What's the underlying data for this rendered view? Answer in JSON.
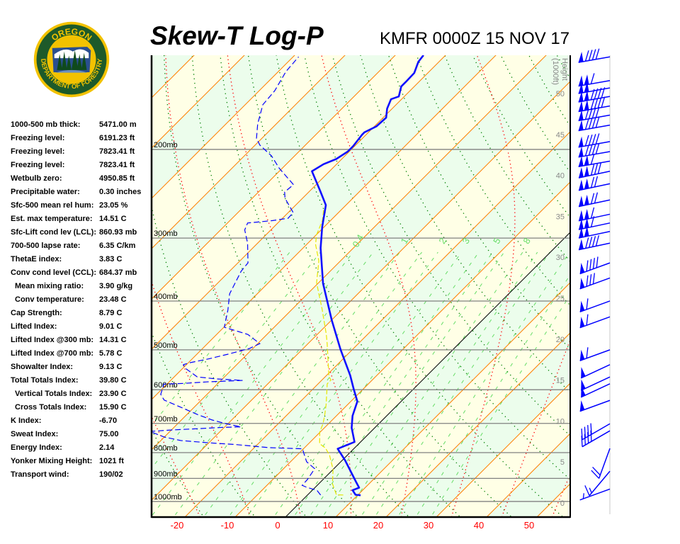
{
  "header": {
    "title": "Skew-T Log-P",
    "station_time": "KMFR 0000Z 15 NOV 17"
  },
  "logo": {
    "top_text": "OREGON",
    "bottom_text": "DEPARTMENT OF FORESTRY",
    "colors": {
      "ring": "#f2c200",
      "field": "#1d5a2a"
    }
  },
  "stats": [
    {
      "label": "1000-500 mb thick:",
      "value": "5471.00 m"
    },
    {
      "label": "Freezing level:",
      "value": "6191.23 ft"
    },
    {
      "label": "Freezing level:",
      "value": "7823.41 ft"
    },
    {
      "label": "Freezing level:",
      "value": "7823.41 ft"
    },
    {
      "label": "Wetbulb zero:",
      "value": "4950.85 ft"
    },
    {
      "label": "Precipitable water:",
      "value": "0.30 inches"
    },
    {
      "label": "Sfc-500 mean rel hum:",
      "value": "23.05 %"
    },
    {
      "label": "Est. max temperature:",
      "value": "14.51 C"
    },
    {
      "label": "Sfc-Lift cond lev (LCL):",
      "value": "860.93 mb"
    },
    {
      "label": "700-500 lapse rate:",
      "value": "6.35 C/km"
    },
    {
      "label": "ThetaE index:",
      "value": "3.83 C"
    },
    {
      "label": "Conv cond level (CCL):",
      "value": "684.37 mb"
    },
    {
      "label": "Mean mixing ratio:",
      "value": "3.90 g/kg"
    },
    {
      "label": "Conv temperature:",
      "value": "23.48 C"
    },
    {
      "label": "Cap Strength:",
      "value": "8.79 C"
    },
    {
      "label": "Lifted Index:",
      "value": "9.01 C"
    },
    {
      "label": "Lifted Index @300 mb:",
      "value": "14.31 C"
    },
    {
      "label": "Lifted Index @700 mb:",
      "value": "5.78 C"
    },
    {
      "label": "Showalter Index:",
      "value": "9.13 C"
    },
    {
      "label": "Total Totals Index:",
      "value": "39.80 C"
    },
    {
      "label": "Vertical Totals Index:",
      "value": "23.90 C"
    },
    {
      "label": "Cross Totals Index:",
      "value": "15.90 C"
    },
    {
      "label": "K Index:",
      "value": "-6.70"
    },
    {
      "label": "Sweat Index:",
      "value": "75.00"
    },
    {
      "label": "Energy Index:",
      "value": "2.14"
    },
    {
      "label": "Yonker Mixing Height:",
      "value": "1021 ft"
    },
    {
      "label": "Transport wind:",
      "value": "190/02"
    }
  ],
  "chart_data": {
    "type": "skew-t",
    "title": "Skew-T Log-P",
    "subtitle": "KMFR 0000Z 15 NOV 17",
    "x_axis": {
      "unit": "C",
      "ticks": [
        -20,
        -10,
        0,
        10,
        20,
        30,
        40,
        50
      ],
      "tick_labels": [
        "-20",
        "-10",
        "0",
        "10",
        "20",
        "30",
        "40",
        "50"
      ]
    },
    "y_axis": {
      "scale": "log-pressure",
      "range_mb": [
        1075,
        130
      ],
      "isobars": [
        200,
        300,
        400,
        500,
        600,
        700,
        800,
        900,
        1000
      ],
      "isobar_labels": [
        "200mb",
        "300mb",
        "400mb",
        "500mb",
        "600mb",
        "700mb",
        "800mb",
        "900mb",
        "1000mb"
      ]
    },
    "height_axis": {
      "label_line1": "Height",
      "label_line2": "(1000ft)",
      "ticks": [
        0,
        5,
        10,
        15,
        20,
        25,
        30,
        35,
        40,
        45,
        50
      ],
      "tick_labels": [
        "0",
        "5",
        "10",
        "15",
        "20",
        "25",
        "30",
        "35",
        "40",
        "45",
        "50"
      ]
    },
    "isotherm_interval_c": 10,
    "mixing_ratio_labels": [
      "0.4",
      "1",
      "2",
      "3",
      "5",
      "8"
    ],
    "mixing_ratio_label_values": [
      0.4,
      1,
      2,
      3,
      5,
      8
    ],
    "mixing_ratio_lines": [
      0.1,
      0.2,
      0.4,
      0.6,
      1,
      1.5,
      2,
      3,
      4,
      5,
      6,
      8,
      10,
      12,
      16,
      20,
      24
    ],
    "colors": {
      "temperature": "#1010ff",
      "dewpoint": "#0000ff",
      "wetbulb": "#e6e600",
      "isotherm": "#ff8000",
      "zero_isotherm": "#000000",
      "dry_adiabat": "#008000",
      "moist_adiabat": "#ff0000",
      "mixing_ratio": "#66dd66",
      "isobar": "#808080",
      "band_a": "#ffffe6",
      "band_b": "#ecfdec",
      "wind": "#0000ff",
      "x_tick_labels": "#ff0000"
    },
    "temperature": [
      {
        "p": 972,
        "t": 10.6
      },
      {
        "p": 970,
        "t": 9.5
      },
      {
        "p": 950,
        "t": 8.0
      },
      {
        "p": 939,
        "t": 8.8
      },
      {
        "p": 914,
        "t": 7.0
      },
      {
        "p": 829,
        "t": 0.6
      },
      {
        "p": 786,
        "t": -3.2
      },
      {
        "p": 762,
        "t": -1.2
      },
      {
        "p": 714,
        "t": -4.6
      },
      {
        "p": 676,
        "t": -6.8
      },
      {
        "p": 633,
        "t": -8.7
      },
      {
        "p": 597,
        "t": -12.0
      },
      {
        "p": 562,
        "t": -15.3
      },
      {
        "p": 499,
        "t": -22.4
      },
      {
        "p": 437,
        "t": -29.9
      },
      {
        "p": 369,
        "t": -39.0
      },
      {
        "p": 314,
        "t": -46.5
      },
      {
        "p": 285,
        "t": -50.4
      },
      {
        "p": 258,
        "t": -54.0
      },
      {
        "p": 242,
        "t": -57.9
      },
      {
        "p": 221,
        "t": -63.5
      },
      {
        "p": 214,
        "t": -62.6
      },
      {
        "p": 209,
        "t": -61.1
      },
      {
        "p": 202,
        "t": -60.3
      },
      {
        "p": 197,
        "t": -60.3
      },
      {
        "p": 187,
        "t": -60.8
      },
      {
        "p": 185,
        "t": -60.8
      },
      {
        "p": 180,
        "t": -59.6
      },
      {
        "p": 173,
        "t": -59.4
      },
      {
        "p": 166,
        "t": -61.0
      },
      {
        "p": 159,
        "t": -62.1
      },
      {
        "p": 157,
        "t": -61.1
      },
      {
        "p": 150,
        "t": -62.6
      },
      {
        "p": 147,
        "t": -62.6
      },
      {
        "p": 141,
        "t": -62.7
      },
      {
        "p": 134,
        "t": -64.1
      },
      {
        "p": 130,
        "t": -64.4
      }
    ],
    "dewpoint": [
      {
        "p": 971,
        "t": 2.6
      },
      {
        "p": 950,
        "t": 0.9
      },
      {
        "p": 938,
        "t": -1.6
      },
      {
        "p": 929,
        "t": -3.0
      },
      {
        "p": 905,
        "t": -3.1
      },
      {
        "p": 861,
        "t": -3.8
      },
      {
        "p": 834,
        "t": -6.8
      },
      {
        "p": 807,
        "t": -8.7
      },
      {
        "p": 786,
        "t": -10.2
      },
      {
        "p": 782,
        "t": -17.0
      },
      {
        "p": 771,
        "t": -24.3
      },
      {
        "p": 765,
        "t": -29.9
      },
      {
        "p": 757,
        "t": -36.0
      },
      {
        "p": 745,
        "t": -40.0
      },
      {
        "p": 726,
        "t": -44.0
      },
      {
        "p": 721,
        "t": -39.6
      },
      {
        "p": 717,
        "t": -35.0
      },
      {
        "p": 713,
        "t": -30.6
      },
      {
        "p": 711,
        "t": -26.8
      },
      {
        "p": 701,
        "t": -30.4
      },
      {
        "p": 689,
        "t": -33.9
      },
      {
        "p": 672,
        "t": -37.9
      },
      {
        "p": 644,
        "t": -44.0
      },
      {
        "p": 629,
        "t": -47.4
      },
      {
        "p": 613,
        "t": -49.2
      },
      {
        "p": 585,
        "t": -50.6
      },
      {
        "p": 583,
        "t": -46.9
      },
      {
        "p": 579,
        "t": -42.6
      },
      {
        "p": 575,
        "t": -35.7
      },
      {
        "p": 571,
        "t": -41.3
      },
      {
        "p": 566,
        "t": -45.4
      },
      {
        "p": 544,
        "t": -49.5
      },
      {
        "p": 535,
        "t": -50.6
      },
      {
        "p": 530,
        "t": -49.6
      },
      {
        "p": 521,
        "t": -46.7
      },
      {
        "p": 510,
        "t": -43.8
      },
      {
        "p": 497,
        "t": -40.7
      },
      {
        "p": 486,
        "t": -39.6
      },
      {
        "p": 466,
        "t": -43.8
      },
      {
        "p": 451,
        "t": -49.9
      },
      {
        "p": 417,
        "t": -52.6
      },
      {
        "p": 387,
        "t": -55.5
      },
      {
        "p": 349,
        "t": -57.7
      },
      {
        "p": 336,
        "t": -58.0
      },
      {
        "p": 307,
        "t": -62.0
      },
      {
        "p": 289,
        "t": -65.2
      },
      {
        "p": 280,
        "t": -66.0
      },
      {
        "p": 277,
        "t": -61.6
      },
      {
        "p": 274,
        "t": -58.9
      },
      {
        "p": 267,
        "t": -59.0
      },
      {
        "p": 250,
        "t": -63.5
      },
      {
        "p": 243,
        "t": -64.8
      },
      {
        "p": 235,
        "t": -64.5
      },
      {
        "p": 218,
        "t": -70.6
      },
      {
        "p": 206,
        "t": -74.6
      },
      {
        "p": 196,
        "t": -79.1
      },
      {
        "p": 190,
        "t": -81.1
      },
      {
        "p": 178,
        "t": -83.7
      },
      {
        "p": 163,
        "t": -86.5
      },
      {
        "p": 153,
        "t": -86.9
      },
      {
        "p": 140,
        "t": -88.5
      },
      {
        "p": 131,
        "t": -88.9
      }
    ],
    "wetbulb": [
      {
        "p": 971,
        "t": 7.1
      },
      {
        "p": 970,
        "t": 5.7
      },
      {
        "p": 922,
        "t": 2.7
      },
      {
        "p": 864,
        "t": 0.0
      },
      {
        "p": 810,
        "t": -3.5
      },
      {
        "p": 783,
        "t": -5.8
      },
      {
        "p": 768,
        "t": -7.8
      },
      {
        "p": 728,
        "t": -10.1
      },
      {
        "p": 701,
        "t": -11.1
      },
      {
        "p": 677,
        "t": -12.3
      },
      {
        "p": 642,
        "t": -14.3
      },
      {
        "p": 584,
        "t": -18.2
      },
      {
        "p": 574,
        "t": -18.2
      },
      {
        "p": 565,
        "t": -19.3
      },
      {
        "p": 486,
        "t": -26.2
      },
      {
        "p": 466,
        "t": -28.2
      },
      {
        "p": 414,
        "t": -34.2
      },
      {
        "p": 368,
        "t": -40.4
      },
      {
        "p": 333,
        "t": -44.3
      },
      {
        "p": 309,
        "t": -48.2
      },
      {
        "p": 296,
        "t": -49.9
      },
      {
        "p": 277,
        "t": -51.6
      },
      {
        "p": 263,
        "t": -53.6
      }
    ],
    "winds": [
      {
        "p": 131,
        "dir": 260,
        "spd": 90
      },
      {
        "p": 146,
        "dir": 260,
        "spd": 110
      },
      {
        "p": 151,
        "dir": 260,
        "spd": 100
      },
      {
        "p": 157,
        "dir": 260,
        "spd": 140
      },
      {
        "p": 164,
        "dir": 260,
        "spd": 140
      },
      {
        "p": 171,
        "dir": 260,
        "spd": 90
      },
      {
        "p": 179,
        "dir": 260,
        "spd": 90
      },
      {
        "p": 193,
        "dir": 260,
        "spd": 90
      },
      {
        "p": 202,
        "dir": 260,
        "spd": 90
      },
      {
        "p": 211,
        "dir": 260,
        "spd": 110
      },
      {
        "p": 221,
        "dir": 258,
        "spd": 130
      },
      {
        "p": 234,
        "dir": 258,
        "spd": 120
      },
      {
        "p": 252,
        "dir": 258,
        "spd": 120
      },
      {
        "p": 269,
        "dir": 258,
        "spd": 110
      },
      {
        "p": 280,
        "dir": 258,
        "spd": 110
      },
      {
        "p": 291,
        "dir": 258,
        "spd": 100
      },
      {
        "p": 307,
        "dir": 258,
        "spd": 90
      },
      {
        "p": 336,
        "dir": 250,
        "spd": 90
      },
      {
        "p": 360,
        "dir": 250,
        "spd": 80
      },
      {
        "p": 400,
        "dir": 250,
        "spd": 60
      },
      {
        "p": 430,
        "dir": 250,
        "spd": 60
      },
      {
        "p": 500,
        "dir": 250,
        "spd": 60
      },
      {
        "p": 535,
        "dir": 245,
        "spd": 50
      },
      {
        "p": 566,
        "dir": 245,
        "spd": 50
      },
      {
        "p": 584,
        "dir": 245,
        "spd": 50
      },
      {
        "p": 630,
        "dir": 250,
        "spd": 50
      },
      {
        "p": 701,
        "dir": 240,
        "spd": 40
      },
      {
        "p": 724,
        "dir": 240,
        "spd": 40
      },
      {
        "p": 785,
        "dir": 200,
        "spd": 20
      },
      {
        "p": 871,
        "dir": 220,
        "spd": 15
      },
      {
        "p": 945,
        "dir": 250,
        "spd": 5
      }
    ]
  }
}
